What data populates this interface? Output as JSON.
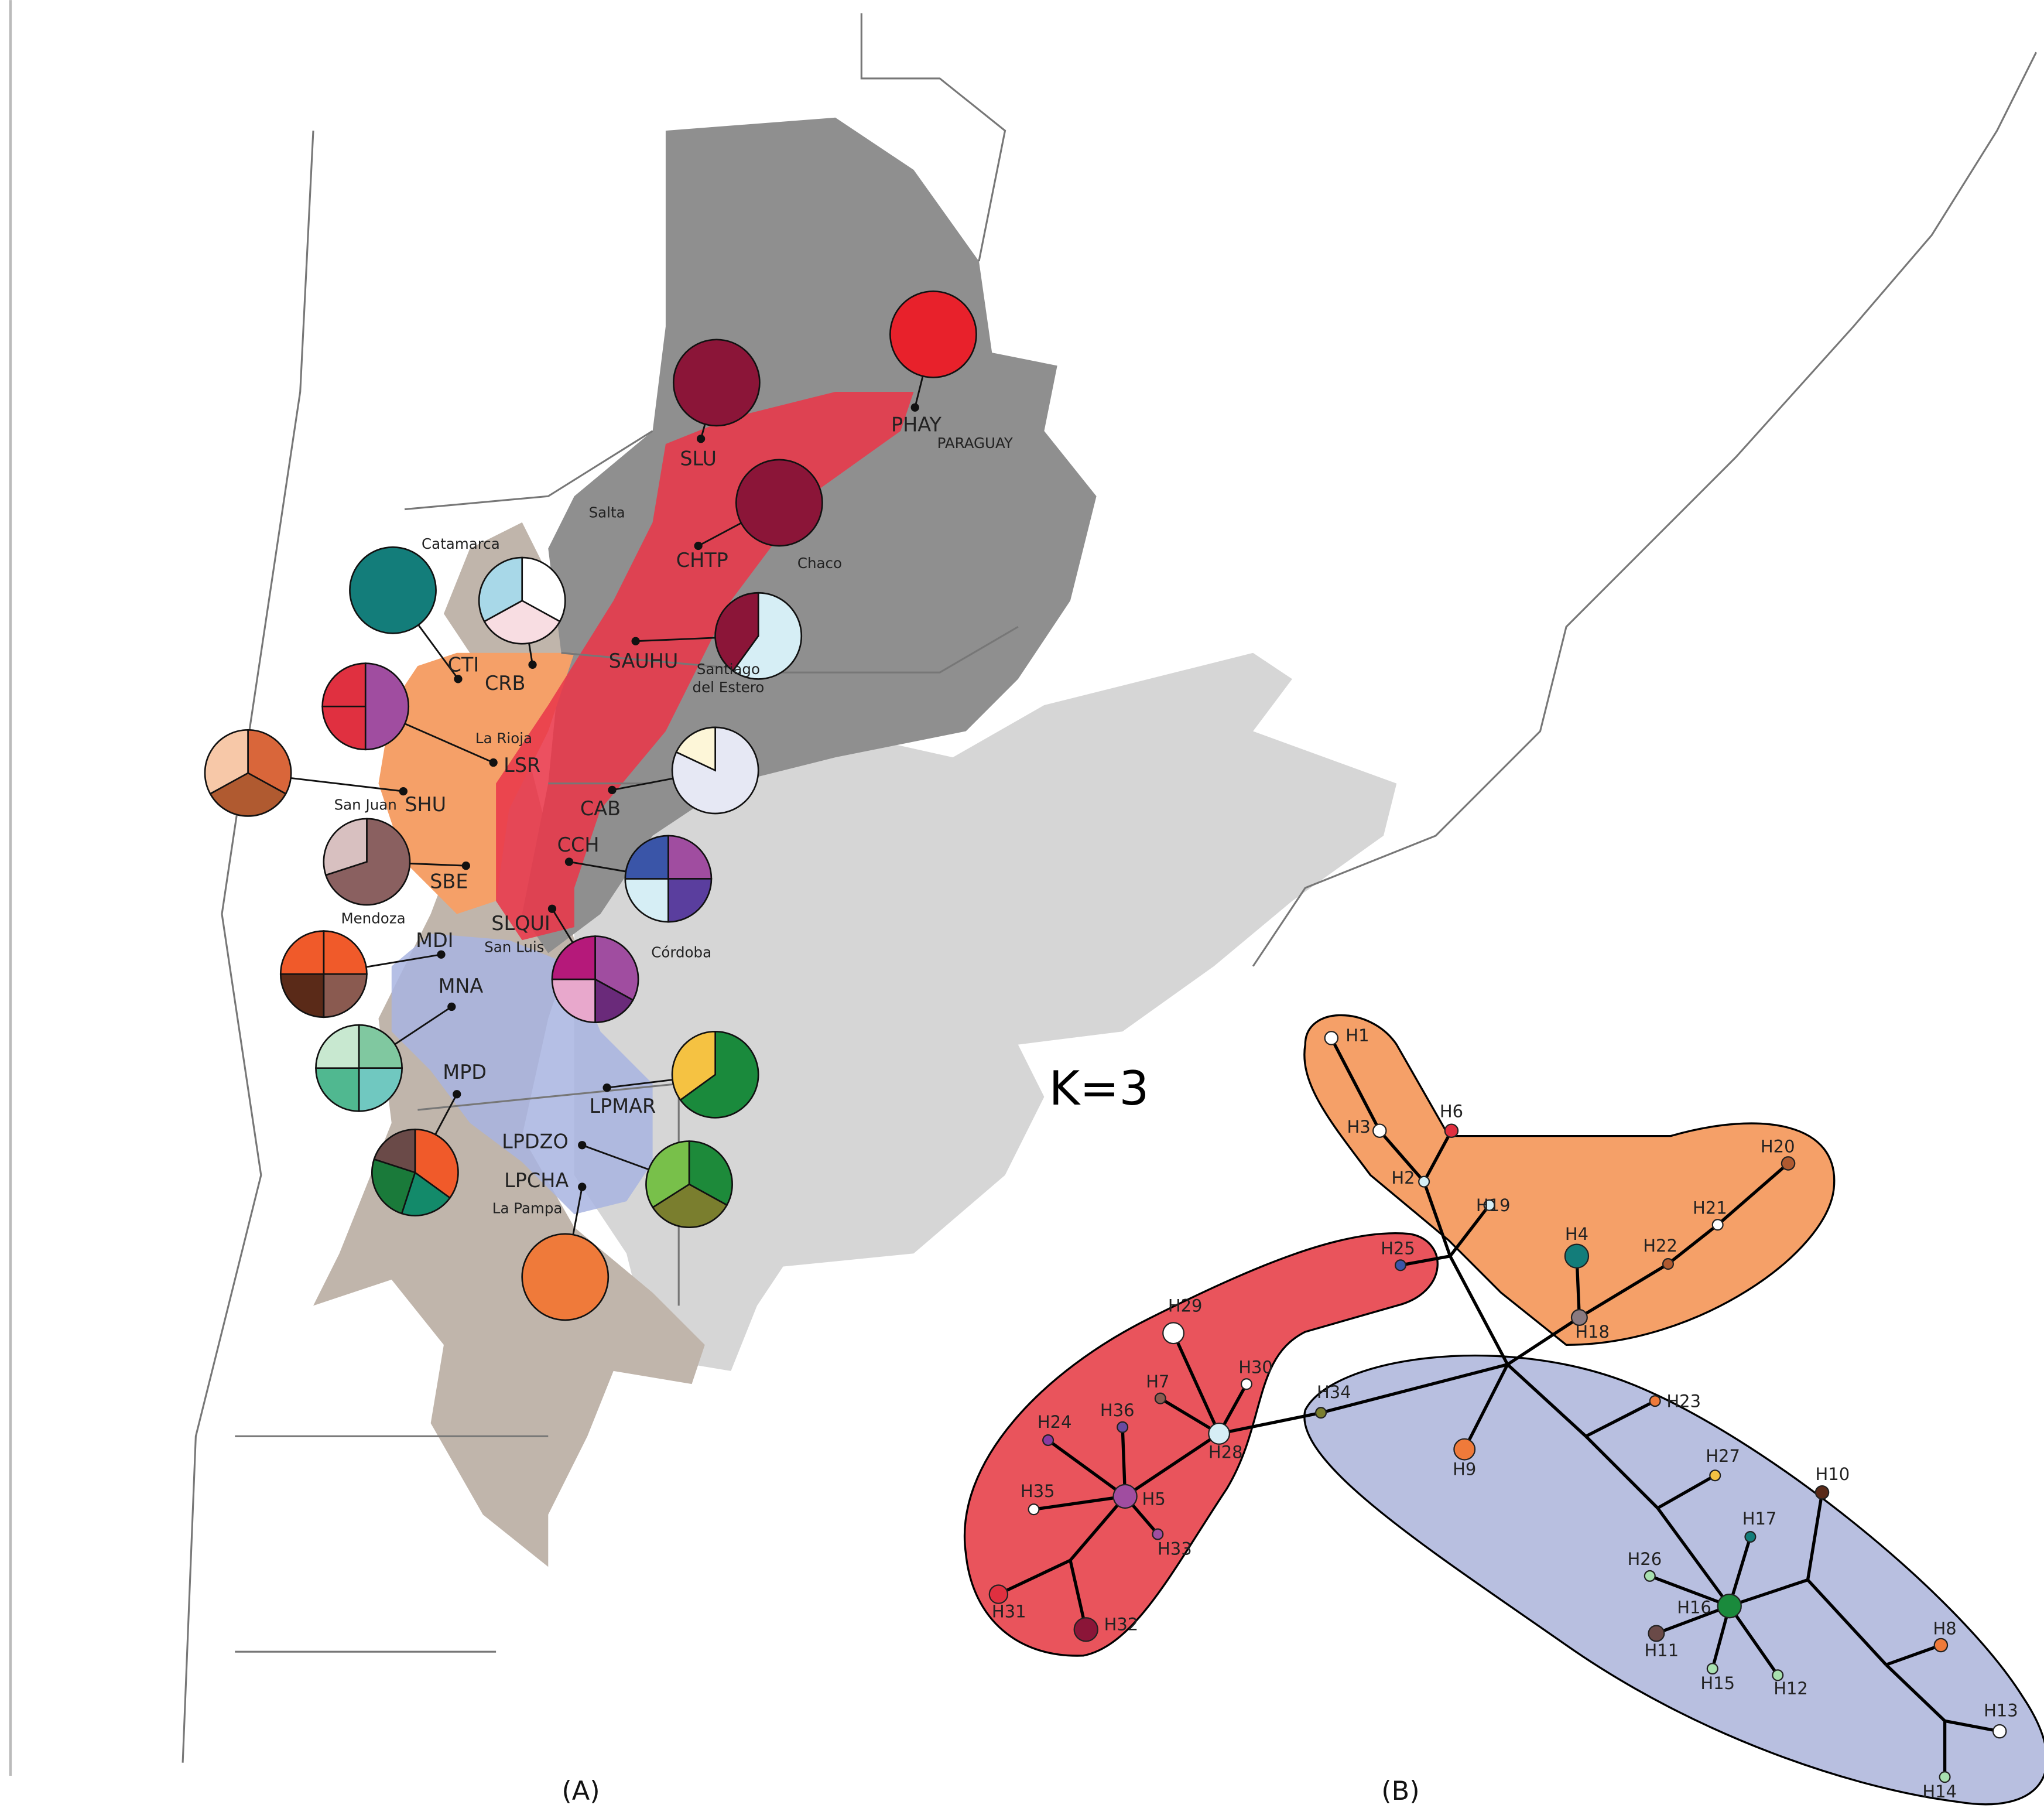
{
  "panel_a": {
    "populations": [
      {
        "label": "SLU",
        "slices": [
          {
            "color": "#8b1538",
            "value": 1
          }
        ]
      },
      {
        "label": "PHAY",
        "slices": [
          {
            "color": "#e8212b",
            "value": 1
          }
        ]
      },
      {
        "label": "CHTP",
        "slices": [
          {
            "color": "#8b1538",
            "value": 1
          }
        ]
      },
      {
        "label": "SAUHU",
        "slices": [
          {
            "color": "#d6eef5",
            "value": 0.6
          },
          {
            "color": "#8b1538",
            "value": 0.4
          }
        ]
      },
      {
        "label": "CAB",
        "slices": [
          {
            "color": "#e6e8f4",
            "value": 0.82
          },
          {
            "color": "#fdf6d8",
            "value": 0.18
          }
        ]
      },
      {
        "label": "CCH",
        "slices": [
          {
            "color": "#a04da0",
            "value": 0.25
          },
          {
            "color": "#5a3e9e",
            "value": 0.25
          },
          {
            "color": "#d6eef5",
            "value": 0.25
          },
          {
            "color": "#3a55a8",
            "value": 0.25
          }
        ]
      },
      {
        "label": "SLQUI",
        "slices": [
          {
            "color": "#a04da0",
            "value": 0.33
          },
          {
            "color": "#6a2a7a",
            "value": 0.17
          },
          {
            "color": "#e8a8cc",
            "value": 0.25
          },
          {
            "color": "#b5197a",
            "value": 0.25
          }
        ]
      },
      {
        "label": "LPMAR",
        "slices": [
          {
            "color": "#1a8a3c",
            "value": 0.65
          },
          {
            "color": "#f5c242",
            "value": 0.35
          }
        ]
      },
      {
        "label": "LPDZO",
        "slices": [
          {
            "color": "#1d8a3a",
            "value": 0.33
          },
          {
            "color": "#7a7e2e",
            "value": 0.33
          },
          {
            "color": "#78c04a",
            "value": 0.34
          }
        ]
      },
      {
        "label": "LPCHA",
        "slices": [
          {
            "color": "#ef7a3a",
            "value": 1
          }
        ]
      },
      {
        "label": "CTI",
        "slices": [
          {
            "color": "#137d7a",
            "value": 1
          }
        ]
      },
      {
        "label": "CRB",
        "slices": [
          {
            "color": "#ffffff",
            "value": 0.33
          },
          {
            "color": "#f8dde2",
            "value": 0.34
          },
          {
            "color": "#a8d8e8",
            "value": 0.33
          }
        ]
      },
      {
        "label": "LSR",
        "slices": [
          {
            "color": "#a04da0",
            "value": 0.5
          },
          {
            "color": "#e03040",
            "value": 0.25
          },
          {
            "color": "#e03040",
            "value": 0.25
          }
        ]
      },
      {
        "label": "SHU",
        "slices": [
          {
            "color": "#d9663a",
            "value": 0.33
          },
          {
            "color": "#b05a30",
            "value": 0.34
          },
          {
            "color": "#f7c8a8",
            "value": 0.33
          }
        ]
      },
      {
        "label": "SBE",
        "slices": [
          {
            "color": "#8a6060",
            "value": 0.7
          },
          {
            "color": "#d8c0c0",
            "value": 0.3
          }
        ]
      },
      {
        "label": "MDI",
        "slices": [
          {
            "color": "#f05a2a",
            "value": 0.25
          },
          {
            "color": "#8a5a50",
            "value": 0.25
          },
          {
            "color": "#5a2a18",
            "value": 0.25
          },
          {
            "color": "#f05a2a",
            "value": 0.25
          }
        ]
      },
      {
        "label": "MNA",
        "slices": [
          {
            "color": "#80c8a0",
            "value": 0.25
          },
          {
            "color": "#70c8c0",
            "value": 0.25
          },
          {
            "color": "#50b890",
            "value": 0.25
          },
          {
            "color": "#c8e8d0",
            "value": 0.25
          }
        ]
      },
      {
        "label": "MPD",
        "slices": [
          {
            "color": "#f05a2a",
            "value": 0.35
          },
          {
            "color": "#138a6a",
            "value": 0.2
          },
          {
            "color": "#1a7a3a",
            "value": 0.25
          },
          {
            "color": "#6a4a48",
            "value": 0.2
          }
        ]
      }
    ],
    "places": [
      [
        "Salta"
      ],
      [
        "Chaco"
      ],
      [
        "Santiago",
        "del Estero"
      ],
      [
        "La Rioja"
      ],
      [
        "San Juan"
      ],
      [
        "Mendoza"
      ],
      [
        "San Luis"
      ],
      [
        "Córdoba"
      ],
      [
        "La Pampa"
      ],
      [
        "Catamarca"
      ],
      [
        "PARAGUAY"
      ]
    ],
    "annotation": "K=3",
    "caption": "(A)"
  },
  "panel_b": {
    "haplotypes": [
      {
        "label": "H1",
        "color": "#ffffff"
      },
      {
        "label": "H2",
        "color": "#d6eef5"
      },
      {
        "label": "H3",
        "color": "#ffffff"
      },
      {
        "label": "H4",
        "color": "#137d7a"
      },
      {
        "label": "H5",
        "color": "#a04da0"
      },
      {
        "label": "H6",
        "color": "#e03040"
      },
      {
        "label": "H7",
        "color": "#8a5a50"
      },
      {
        "label": "H8",
        "color": "#ef7a3a"
      },
      {
        "label": "H9",
        "color": "#ef7a3a"
      },
      {
        "label": "H10",
        "color": "#5a2a18"
      },
      {
        "label": "H11",
        "color": "#6a4a48"
      },
      {
        "label": "H12",
        "color": "#a8e0b0"
      },
      {
        "label": "H13",
        "color": "#ffffff"
      },
      {
        "label": "H14",
        "color": "#a8e0b0"
      },
      {
        "label": "H15",
        "color": "#a8e0b0"
      },
      {
        "label": "H16",
        "color": "#1a8a3c"
      },
      {
        "label": "H17",
        "color": "#137d7a"
      },
      {
        "label": "H18",
        "color": "#8a7a80"
      },
      {
        "label": "H19",
        "color": "#d6eef5"
      },
      {
        "label": "H20",
        "color": "#b05a30"
      },
      {
        "label": "H21",
        "color": "#ffffff"
      },
      {
        "label": "H22",
        "color": "#b05a30"
      },
      {
        "label": "H23",
        "color": "#ef7a3a"
      },
      {
        "label": "H24",
        "color": "#8a3aa0"
      },
      {
        "label": "H25",
        "color": "#3a55a8"
      },
      {
        "label": "H26",
        "color": "#a8e0b0"
      },
      {
        "label": "H27",
        "color": "#f5c242"
      },
      {
        "label": "H28",
        "color": "#d6eef5"
      },
      {
        "label": "H29",
        "color": "#ffffff"
      },
      {
        "label": "H30",
        "color": "#ffffff"
      },
      {
        "label": "H31",
        "color": "#e03040"
      },
      {
        "label": "H32",
        "color": "#8b1538"
      },
      {
        "label": "H33",
        "color": "#a04da0"
      },
      {
        "label": "H34",
        "color": "#7a7e2e"
      },
      {
        "label": "H35",
        "color": "#ffffff"
      },
      {
        "label": "H36",
        "color": "#6a4aa0"
      }
    ],
    "caption": "(B)"
  }
}
